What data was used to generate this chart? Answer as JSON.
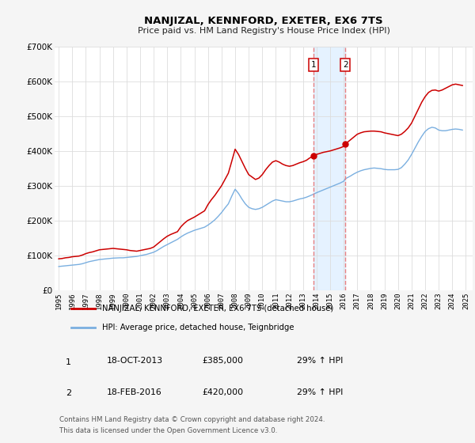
{
  "title": "NANJIZAL, KENNFORD, EXETER, EX6 7TS",
  "subtitle": "Price paid vs. HM Land Registry's House Price Index (HPI)",
  "bg_color": "#f5f5f5",
  "plot_bg_color": "#ffffff",
  "grid_color": "#dddddd",
  "ylim": [
    0,
    700000
  ],
  "yticks": [
    0,
    100000,
    200000,
    300000,
    400000,
    500000,
    600000,
    700000
  ],
  "ytick_labels": [
    "£0",
    "£100K",
    "£200K",
    "£300K",
    "£400K",
    "£500K",
    "£600K",
    "£700K"
  ],
  "xlim_start": 1994.7,
  "xlim_end": 2025.5,
  "xticks": [
    1995,
    1996,
    1997,
    1998,
    1999,
    2000,
    2001,
    2002,
    2003,
    2004,
    2005,
    2006,
    2007,
    2008,
    2009,
    2010,
    2011,
    2012,
    2013,
    2014,
    2015,
    2016,
    2017,
    2018,
    2019,
    2020,
    2021,
    2022,
    2023,
    2024,
    2025
  ],
  "red_line_color": "#cc0000",
  "blue_line_color": "#7aafe0",
  "marker1_date": 2013.79,
  "marker1_value": 385000,
  "marker2_date": 2016.12,
  "marker2_value": 420000,
  "vline1_x": 2013.79,
  "vline2_x": 2016.12,
  "shade_color": "#ddeeff",
  "vline_color": "#e88080",
  "legend_label_red": "NANJIZAL, KENNFORD, EXETER, EX6 7TS (detached house)",
  "legend_label_blue": "HPI: Average price, detached house, Teignbridge",
  "table_row1": [
    "1",
    "18-OCT-2013",
    "£385,000",
    "29% ↑ HPI"
  ],
  "table_row2": [
    "2",
    "18-FEB-2016",
    "£420,000",
    "29% ↑ HPI"
  ],
  "footnote1": "Contains HM Land Registry data © Crown copyright and database right 2024.",
  "footnote2": "This data is licensed under the Open Government Licence v3.0.",
  "red_data_x": [
    1995.0,
    1995.25,
    1995.5,
    1995.75,
    1996.0,
    1996.25,
    1996.5,
    1996.75,
    1997.0,
    1997.25,
    1997.5,
    1997.75,
    1998.0,
    1998.25,
    1998.5,
    1998.75,
    1999.0,
    1999.25,
    1999.5,
    1999.75,
    2000.0,
    2000.25,
    2000.5,
    2000.75,
    2001.0,
    2001.25,
    2001.5,
    2001.75,
    2002.0,
    2002.25,
    2002.5,
    2002.75,
    2003.0,
    2003.25,
    2003.5,
    2003.75,
    2004.0,
    2004.25,
    2004.5,
    2004.75,
    2005.0,
    2005.25,
    2005.5,
    2005.75,
    2006.0,
    2006.25,
    2006.5,
    2006.75,
    2007.0,
    2007.25,
    2007.5,
    2007.75,
    2008.0,
    2008.25,
    2008.5,
    2008.75,
    2009.0,
    2009.25,
    2009.5,
    2009.75,
    2010.0,
    2010.25,
    2010.5,
    2010.75,
    2011.0,
    2011.25,
    2011.5,
    2011.75,
    2012.0,
    2012.25,
    2012.5,
    2012.75,
    2013.0,
    2013.25,
    2013.5,
    2013.79,
    2014.0,
    2014.25,
    2014.5,
    2014.75,
    2015.0,
    2015.25,
    2015.5,
    2015.75,
    2016.0,
    2016.12,
    2016.5,
    2016.75,
    2017.0,
    2017.25,
    2017.5,
    2017.75,
    2018.0,
    2018.25,
    2018.5,
    2018.75,
    2019.0,
    2019.25,
    2019.5,
    2019.75,
    2020.0,
    2020.25,
    2020.5,
    2020.75,
    2021.0,
    2021.25,
    2021.5,
    2021.75,
    2022.0,
    2022.25,
    2022.5,
    2022.75,
    2023.0,
    2023.25,
    2023.5,
    2023.75,
    2024.0,
    2024.25,
    2024.5,
    2024.75
  ],
  "red_data_y": [
    90000,
    91000,
    93000,
    94000,
    96000,
    97000,
    98000,
    101000,
    105000,
    108000,
    110000,
    113000,
    116000,
    117000,
    118000,
    119000,
    120000,
    119000,
    118000,
    117000,
    116000,
    114000,
    113000,
    112000,
    114000,
    116000,
    118000,
    120000,
    124000,
    132000,
    140000,
    148000,
    155000,
    160000,
    164000,
    168000,
    182000,
    192000,
    200000,
    205000,
    210000,
    216000,
    222000,
    228000,
    246000,
    260000,
    272000,
    286000,
    300000,
    318000,
    336000,
    370000,
    405000,
    390000,
    370000,
    350000,
    332000,
    325000,
    318000,
    322000,
    332000,
    346000,
    358000,
    368000,
    372000,
    368000,
    362000,
    358000,
    356000,
    358000,
    362000,
    366000,
    369000,
    373000,
    380000,
    385000,
    390000,
    393000,
    396000,
    398000,
    400000,
    403000,
    406000,
    409000,
    413000,
    420000,
    432000,
    440000,
    448000,
    452000,
    455000,
    456000,
    457000,
    457000,
    456000,
    455000,
    452000,
    450000,
    448000,
    446000,
    444000,
    448000,
    456000,
    466000,
    480000,
    500000,
    520000,
    540000,
    556000,
    568000,
    574000,
    575000,
    572000,
    575000,
    580000,
    585000,
    590000,
    592000,
    590000,
    588000
  ],
  "blue_data_x": [
    1995.0,
    1995.25,
    1995.5,
    1995.75,
    1996.0,
    1996.25,
    1996.5,
    1996.75,
    1997.0,
    1997.25,
    1997.5,
    1997.75,
    1998.0,
    1998.25,
    1998.5,
    1998.75,
    1999.0,
    1999.25,
    1999.5,
    1999.75,
    2000.0,
    2000.25,
    2000.5,
    2000.75,
    2001.0,
    2001.25,
    2001.5,
    2001.75,
    2002.0,
    2002.25,
    2002.5,
    2002.75,
    2003.0,
    2003.25,
    2003.5,
    2003.75,
    2004.0,
    2004.25,
    2004.5,
    2004.75,
    2005.0,
    2005.25,
    2005.5,
    2005.75,
    2006.0,
    2006.25,
    2006.5,
    2006.75,
    2007.0,
    2007.25,
    2007.5,
    2007.75,
    2008.0,
    2008.25,
    2008.5,
    2008.75,
    2009.0,
    2009.25,
    2009.5,
    2009.75,
    2010.0,
    2010.25,
    2010.5,
    2010.75,
    2011.0,
    2011.25,
    2011.5,
    2011.75,
    2012.0,
    2012.25,
    2012.5,
    2012.75,
    2013.0,
    2013.25,
    2013.5,
    2013.79,
    2014.0,
    2014.25,
    2014.5,
    2014.75,
    2015.0,
    2015.25,
    2015.5,
    2015.75,
    2016.0,
    2016.12,
    2016.5,
    2016.75,
    2017.0,
    2017.25,
    2017.5,
    2017.75,
    2018.0,
    2018.25,
    2018.5,
    2018.75,
    2019.0,
    2019.25,
    2019.5,
    2019.75,
    2020.0,
    2020.25,
    2020.5,
    2020.75,
    2021.0,
    2021.25,
    2021.5,
    2021.75,
    2022.0,
    2022.25,
    2022.5,
    2022.75,
    2023.0,
    2023.25,
    2023.5,
    2023.75,
    2024.0,
    2024.25,
    2024.5,
    2024.75
  ],
  "blue_data_y": [
    68000,
    69000,
    70000,
    71000,
    72000,
    73000,
    74000,
    76000,
    79000,
    82000,
    84000,
    86000,
    88000,
    89000,
    90000,
    91000,
    92000,
    92500,
    93000,
    93000,
    94000,
    95000,
    96000,
    97000,
    99000,
    101000,
    103000,
    106000,
    109000,
    114000,
    120000,
    126000,
    131000,
    136000,
    141000,
    146000,
    153000,
    159000,
    164000,
    168000,
    172000,
    175000,
    178000,
    181000,
    187000,
    194000,
    202000,
    212000,
    223000,
    236000,
    248000,
    270000,
    290000,
    278000,
    262000,
    248000,
    238000,
    234000,
    232000,
    234000,
    238000,
    244000,
    250000,
    256000,
    260000,
    258000,
    256000,
    254000,
    254000,
    256000,
    259000,
    262000,
    264000,
    267000,
    271000,
    276000,
    280000,
    284000,
    288000,
    292000,
    296000,
    300000,
    304000,
    308000,
    313000,
    320000,
    328000,
    334000,
    339000,
    343000,
    346000,
    348000,
    350000,
    351000,
    350000,
    349000,
    347000,
    346000,
    346000,
    346000,
    347000,
    352000,
    362000,
    374000,
    390000,
    408000,
    426000,
    442000,
    456000,
    464000,
    468000,
    466000,
    460000,
    458000,
    458000,
    460000,
    462000,
    463000,
    462000,
    460000
  ]
}
